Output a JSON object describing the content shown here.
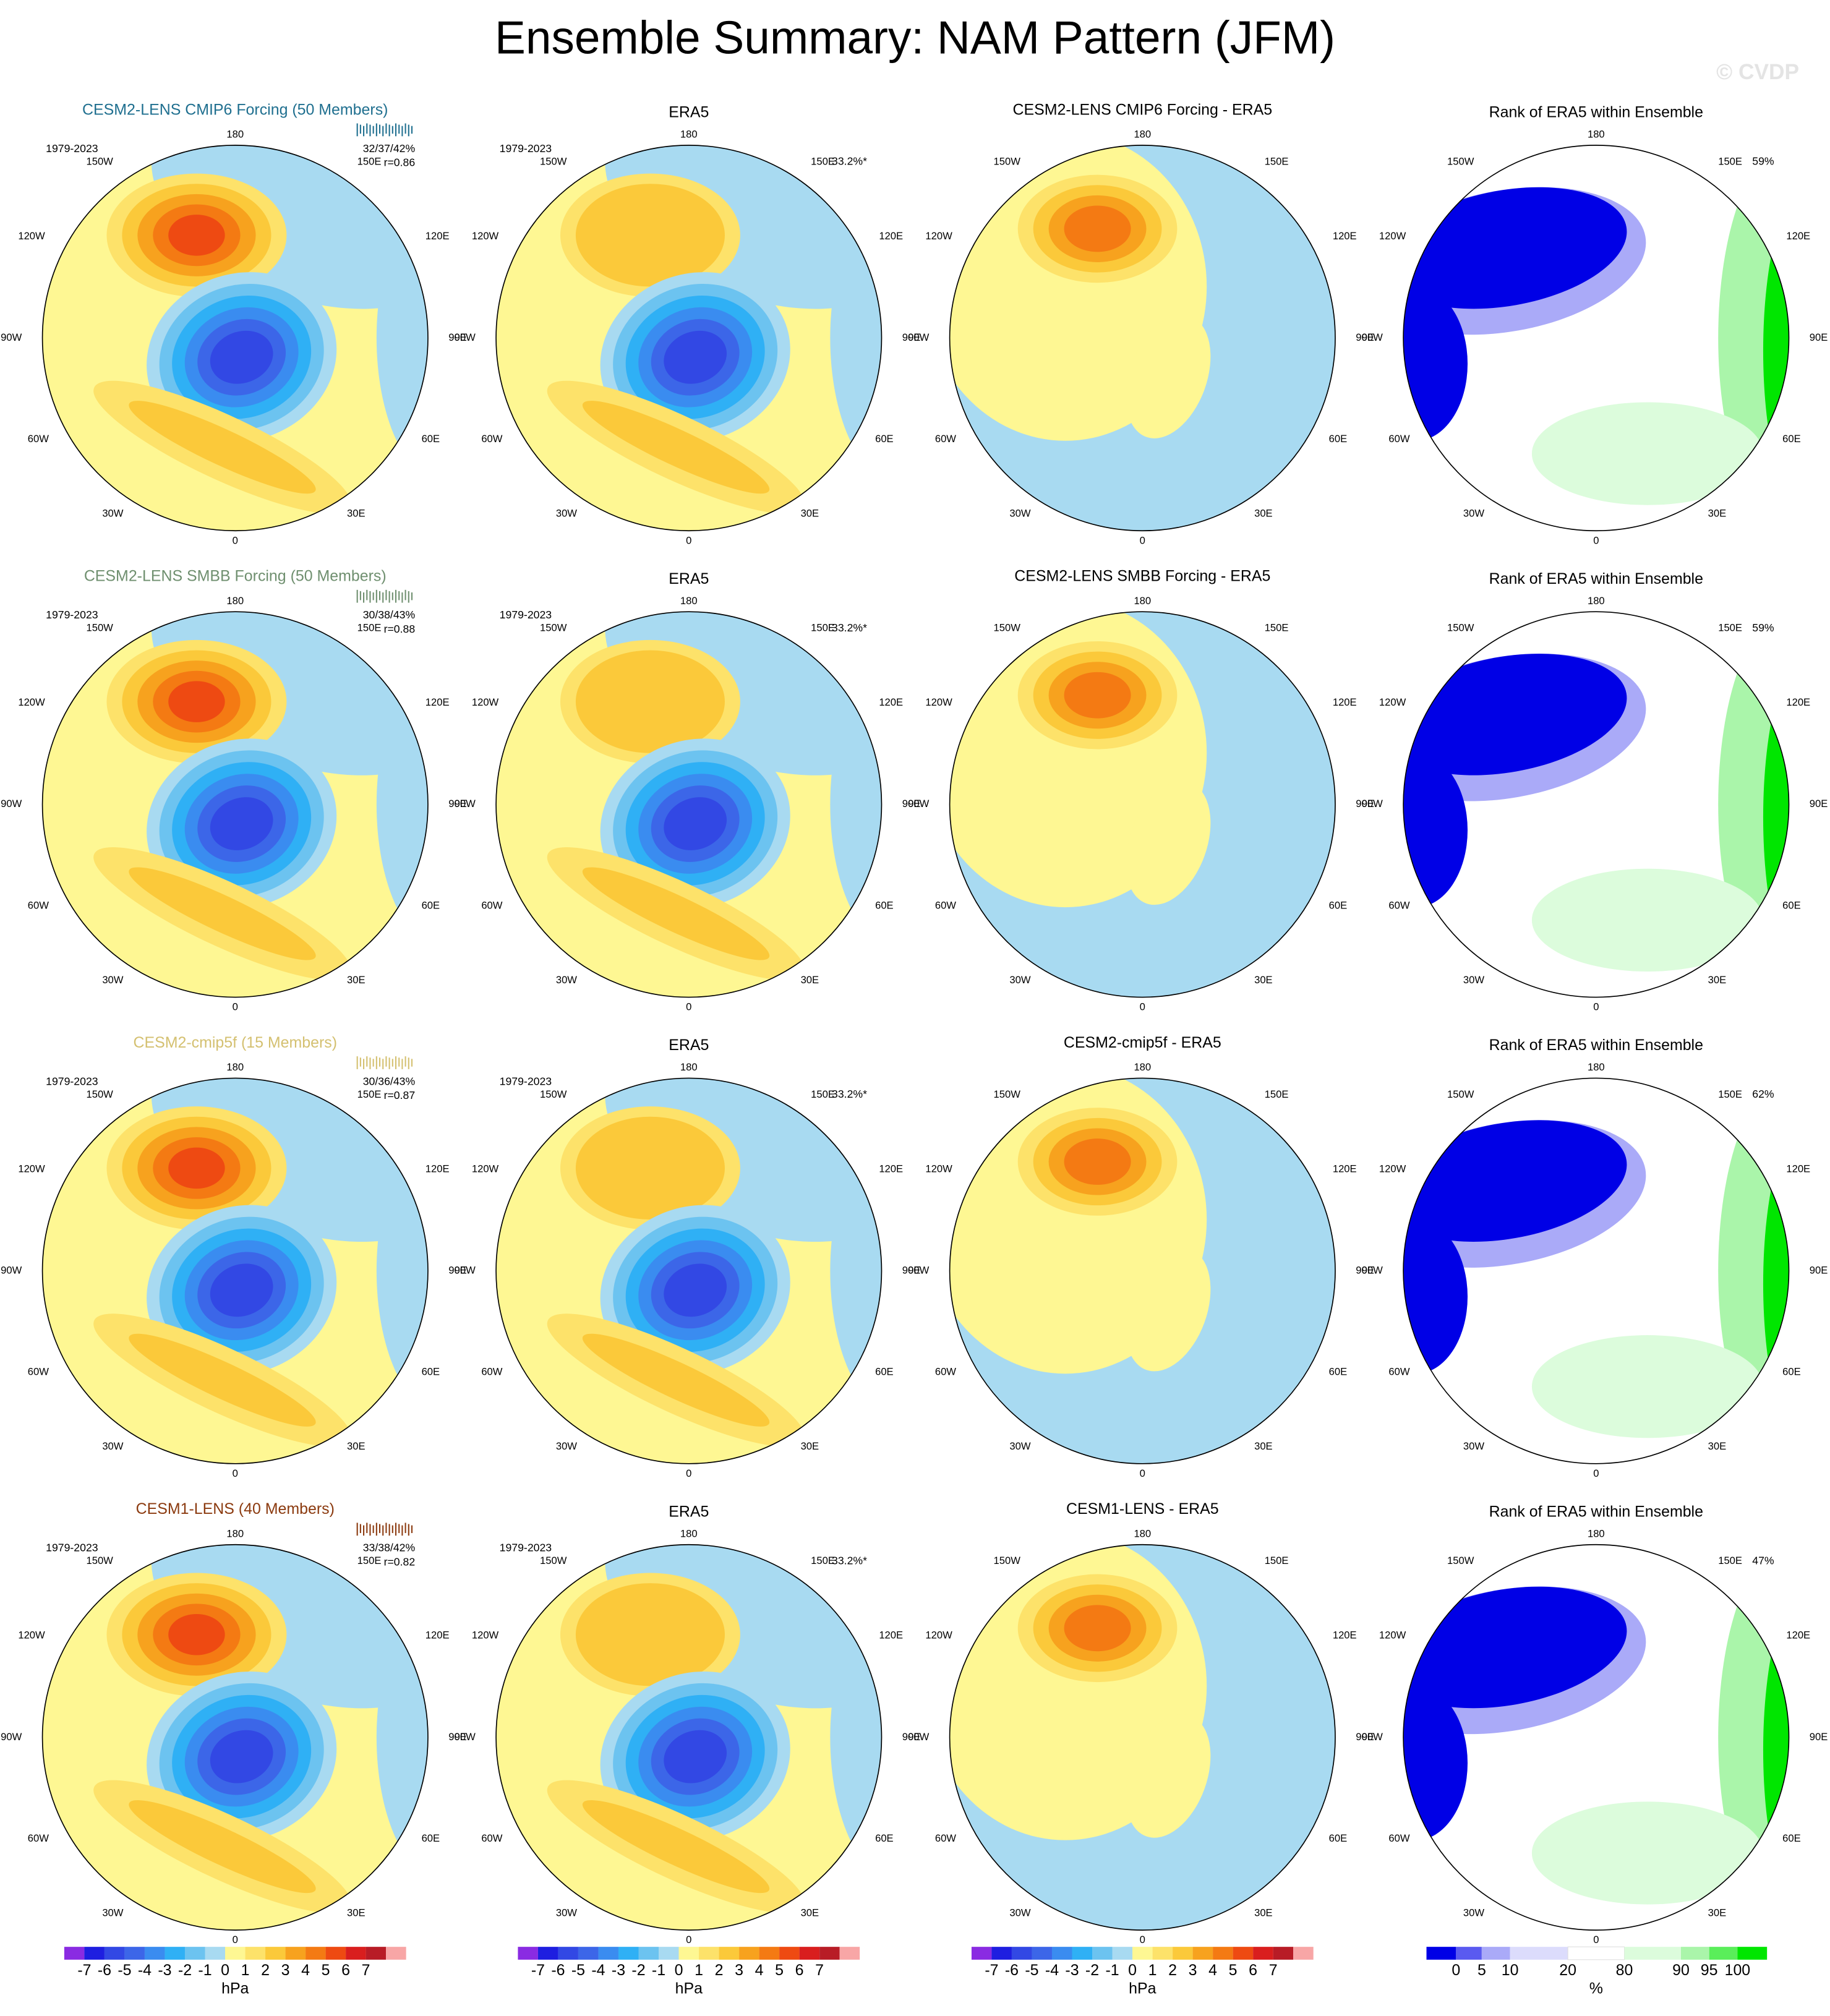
{
  "title": "Ensemble Summary: NAM Pattern (JFM)",
  "watermark": "© CVDP",
  "longitude_labels": [
    "180",
    "150E",
    "120E",
    "90E",
    "60E",
    "30E",
    "0",
    "30W",
    "60W",
    "90W",
    "120W",
    "150W"
  ],
  "rows": [
    {
      "model": {
        "title": "CESM2-LENS CMIP6 Forcing (50 Members)",
        "color": "#1f6f8f",
        "period": "1979-2023",
        "stats": "32/37/42%",
        "r": "r=0.86"
      },
      "era5": {
        "title": "ERA5",
        "period": "1979-2023",
        "pct": "33.2%*"
      },
      "difference": {
        "title": "CESM2-LENS CMIP6 Forcing - ERA5"
      },
      "rank": {
        "title": "Rank of ERA5 within Ensemble",
        "pct": "59%"
      }
    },
    {
      "model": {
        "title": "CESM2-LENS SMBB Forcing (50 Members)",
        "color": "#6f8f6f",
        "period": "1979-2023",
        "stats": "30/38/43%",
        "r": "r=0.88"
      },
      "era5": {
        "title": "ERA5",
        "period": "1979-2023",
        "pct": "33.2%*"
      },
      "difference": {
        "title": "CESM2-LENS SMBB Forcing - ERA5"
      },
      "rank": {
        "title": "Rank of ERA5 within Ensemble",
        "pct": "59%"
      }
    },
    {
      "model": {
        "title": "CESM2-cmip5f (15 Members)",
        "color": "#d4c070",
        "period": "1979-2023",
        "stats": "30/36/43%",
        "r": "r=0.87"
      },
      "era5": {
        "title": "ERA5",
        "period": "1979-2023",
        "pct": "33.2%*"
      },
      "difference": {
        "title": "CESM2-cmip5f - ERA5"
      },
      "rank": {
        "title": "Rank of ERA5 within Ensemble",
        "pct": "62%"
      }
    },
    {
      "model": {
        "title": "CESM1-LENS (40 Members)",
        "color": "#8b3a0f",
        "period": "1979-2023",
        "stats": "33/38/42%",
        "r": "r=0.82"
      },
      "era5": {
        "title": "ERA5",
        "period": "1979-2023",
        "pct": "33.2%*"
      },
      "difference": {
        "title": "CESM1-LENS - ERA5"
      },
      "rank": {
        "title": "Rank of ERA5 within Ensemble",
        "pct": "47%"
      }
    }
  ],
  "pattern_colorbar": {
    "levels": [
      -7,
      -6,
      -5,
      -4,
      -3,
      -2,
      -1,
      0,
      1,
      2,
      3,
      4,
      5,
      6,
      7
    ],
    "colors": [
      "#8a2be2",
      "#1e1ee0",
      "#3248e4",
      "#3c66e8",
      "#3a8cf0",
      "#2fb0f5",
      "#6cc3f0",
      "#a8daf1",
      "#fef793",
      "#fde26a",
      "#fbc93a",
      "#f7a21e",
      "#f47a13",
      "#ee4a12",
      "#d91e1e",
      "#b81c26",
      "#f8a6a6"
    ],
    "units": "hPa"
  },
  "rank_colorbar": {
    "levels": [
      0,
      5,
      10,
      20,
      80,
      90,
      95,
      100
    ],
    "colors": [
      "#0000e6",
      "#5a5af0",
      "#aaaaf8",
      "#dcdcfc",
      "#ffffff",
      "#dcfcdc",
      "#aaf5aa",
      "#5aee5a",
      "#00e600"
    ],
    "units": "%"
  }
}
